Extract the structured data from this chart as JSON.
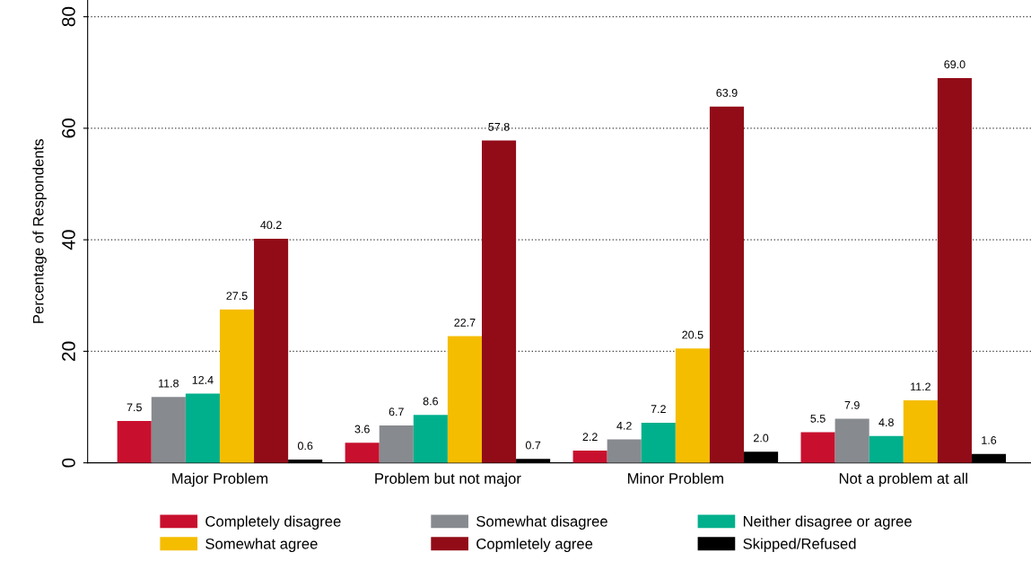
{
  "chart_data": {
    "type": "bar",
    "ylabel": "Percentage of Respondents",
    "categories": [
      "Major Problem",
      "Problem but not major",
      "Minor Problem",
      "Not a problem at all"
    ],
    "series": [
      {
        "name": "Completely disagree",
        "color": "#c8102e",
        "values": [
          7.5,
          3.6,
          2.2,
          5.5
        ],
        "value_labels": [
          "7.5",
          "3.6",
          "2.2",
          "5.5"
        ]
      },
      {
        "name": "Somewhat disagree",
        "color": "#878a8f",
        "values": [
          11.8,
          6.7,
          4.2,
          7.9
        ],
        "value_labels": [
          "11.8",
          "6.7",
          "4.2",
          "7.9"
        ]
      },
      {
        "name": "Neither disagree or agree",
        "color": "#00b08c",
        "values": [
          12.4,
          8.6,
          7.2,
          4.8
        ],
        "value_labels": [
          "12.4",
          "8.6",
          "7.2",
          "4.8"
        ]
      },
      {
        "name": "Somewhat agree",
        "color": "#f5bd00",
        "values": [
          27.5,
          22.7,
          20.5,
          11.2
        ],
        "value_labels": [
          "27.5",
          "22.7",
          "20.5",
          "11.2"
        ]
      },
      {
        "name": "Copmletely agree",
        "color": "#920c18",
        "values": [
          40.2,
          57.8,
          63.9,
          69.0
        ],
        "value_labels": [
          "40.2",
          "57.8",
          "63.9",
          "69.0"
        ]
      },
      {
        "name": "Skipped/Refused",
        "color": "#000000",
        "values": [
          0.6,
          0.7,
          2.0,
          1.6
        ],
        "value_labels": [
          "0.6",
          "0.7",
          "2.0",
          "1.6"
        ]
      }
    ],
    "ylim": [
      0,
      83
    ],
    "yticks": [
      0,
      20,
      40,
      60,
      80
    ],
    "grid": "y",
    "legend": "bottom"
  }
}
